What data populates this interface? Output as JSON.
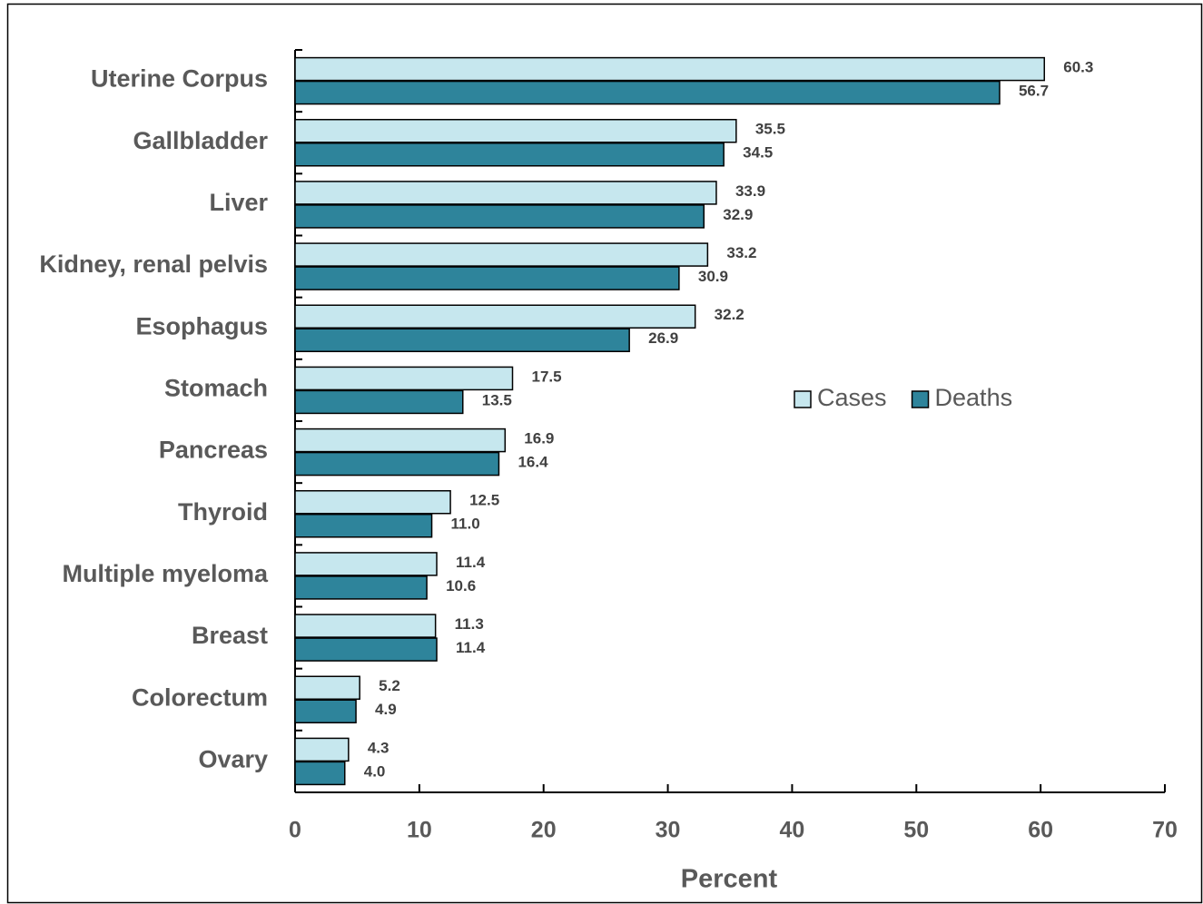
{
  "chart_data": {
    "type": "hbar",
    "x_label": "Percent",
    "categories": [
      "Uterine Corpus",
      "Gallbladder",
      "Liver",
      "Kidney, renal pelvis",
      "Esophagus",
      "Stomach",
      "Pancreas",
      "Thyroid",
      "Multiple myeloma",
      "Breast",
      "Colorectum",
      "Ovary"
    ],
    "series": [
      {
        "name": "Cases",
        "color": "#c6e7ee",
        "values": [
          60.3,
          35.5,
          33.9,
          33.2,
          32.2,
          17.5,
          16.9,
          12.5,
          11.4,
          11.3,
          5.2,
          4.3
        ],
        "value_labels": [
          "60.3",
          "35.5",
          "33.9",
          "33.2",
          "32.2",
          "17.5",
          "16.9",
          "12.5",
          "11.4",
          "11.3",
          "5.2",
          "4.3"
        ]
      },
      {
        "name": "Deaths",
        "color": "#2e849b",
        "values": [
          56.7,
          34.5,
          32.9,
          30.9,
          26.9,
          13.5,
          16.4,
          11.0,
          10.6,
          11.4,
          4.9,
          4.0
        ],
        "value_labels": [
          "56.7",
          "34.5",
          "32.9",
          "30.9",
          "26.9",
          "13.5",
          "16.4",
          "11.0",
          "10.6",
          "11.4",
          "4.9",
          "4.0"
        ]
      }
    ],
    "xlim": [
      0,
      70
    ],
    "xticks": [
      0,
      10,
      20,
      30,
      40,
      50,
      60,
      70
    ],
    "grid": false,
    "legend": "right"
  }
}
